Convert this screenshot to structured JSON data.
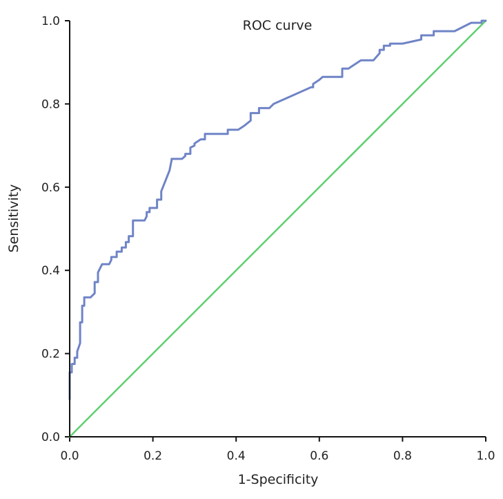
{
  "chart_data": {
    "type": "line",
    "title": "ROC curve",
    "xlabel": "1-Specificity",
    "ylabel": "Sensitivity",
    "xlim": [
      0,
      1
    ],
    "ylim": [
      0,
      1
    ],
    "x_ticks": [
      "0.0",
      "0.2",
      "0.4",
      "0.6",
      "0.8",
      "1.0"
    ],
    "y_ticks": [
      "0.0",
      "0.2",
      "0.4",
      "0.6",
      "0.8",
      "1.0"
    ],
    "grid": false,
    "legend": "none",
    "series": [
      {
        "color": "#6f84c6",
        "x": [
          0.0,
          0.0,
          0.005,
          0.005,
          0.012,
          0.012,
          0.018,
          0.018,
          0.025,
          0.025,
          0.03,
          0.03,
          0.035,
          0.035,
          0.05,
          0.06,
          0.06,
          0.068,
          0.068,
          0.078,
          0.095,
          0.1,
          0.1,
          0.113,
          0.113,
          0.125,
          0.125,
          0.135,
          0.135,
          0.142,
          0.142,
          0.152,
          0.152,
          0.18,
          0.185,
          0.185,
          0.192,
          0.192,
          0.2,
          0.21,
          0.21,
          0.22,
          0.22,
          0.24,
          0.245,
          0.245,
          0.27,
          0.278,
          0.278,
          0.29,
          0.29,
          0.3,
          0.3,
          0.315,
          0.325,
          0.325,
          0.34,
          0.34,
          0.38,
          0.38,
          0.405,
          0.42,
          0.435,
          0.435,
          0.455,
          0.455,
          0.48,
          0.49,
          0.58,
          0.585,
          0.585,
          0.6,
          0.608,
          0.608,
          0.655,
          0.655,
          0.67,
          0.7,
          0.705,
          0.73,
          0.745,
          0.745,
          0.755,
          0.755,
          0.77,
          0.77,
          0.8,
          0.845,
          0.845,
          0.875,
          0.875,
          0.905,
          0.925,
          0.955,
          0.965,
          0.99,
          0.99,
          1.0
        ],
        "y": [
          0.09,
          0.155,
          0.155,
          0.175,
          0.175,
          0.19,
          0.19,
          0.205,
          0.225,
          0.275,
          0.275,
          0.315,
          0.315,
          0.335,
          0.335,
          0.345,
          0.372,
          0.372,
          0.395,
          0.415,
          0.415,
          0.425,
          0.432,
          0.432,
          0.445,
          0.445,
          0.455,
          0.455,
          0.468,
          0.468,
          0.482,
          0.482,
          0.52,
          0.52,
          0.53,
          0.54,
          0.54,
          0.55,
          0.55,
          0.55,
          0.57,
          0.57,
          0.59,
          0.64,
          0.665,
          0.668,
          0.668,
          0.675,
          0.68,
          0.68,
          0.695,
          0.7,
          0.705,
          0.715,
          0.715,
          0.728,
          0.728,
          0.728,
          0.728,
          0.738,
          0.738,
          0.748,
          0.76,
          0.778,
          0.778,
          0.79,
          0.79,
          0.8,
          0.84,
          0.84,
          0.848,
          0.858,
          0.865,
          0.865,
          0.865,
          0.885,
          0.885,
          0.905,
          0.905,
          0.905,
          0.922,
          0.93,
          0.93,
          0.94,
          0.94,
          0.945,
          0.945,
          0.955,
          0.965,
          0.965,
          0.975,
          0.975,
          0.975,
          0.99,
          0.995,
          0.995,
          1.0,
          1.0
        ]
      },
      {
        "color": "#5ecf6e",
        "x": [
          0.0,
          1.0
        ],
        "y": [
          0.0,
          1.0
        ]
      }
    ]
  }
}
